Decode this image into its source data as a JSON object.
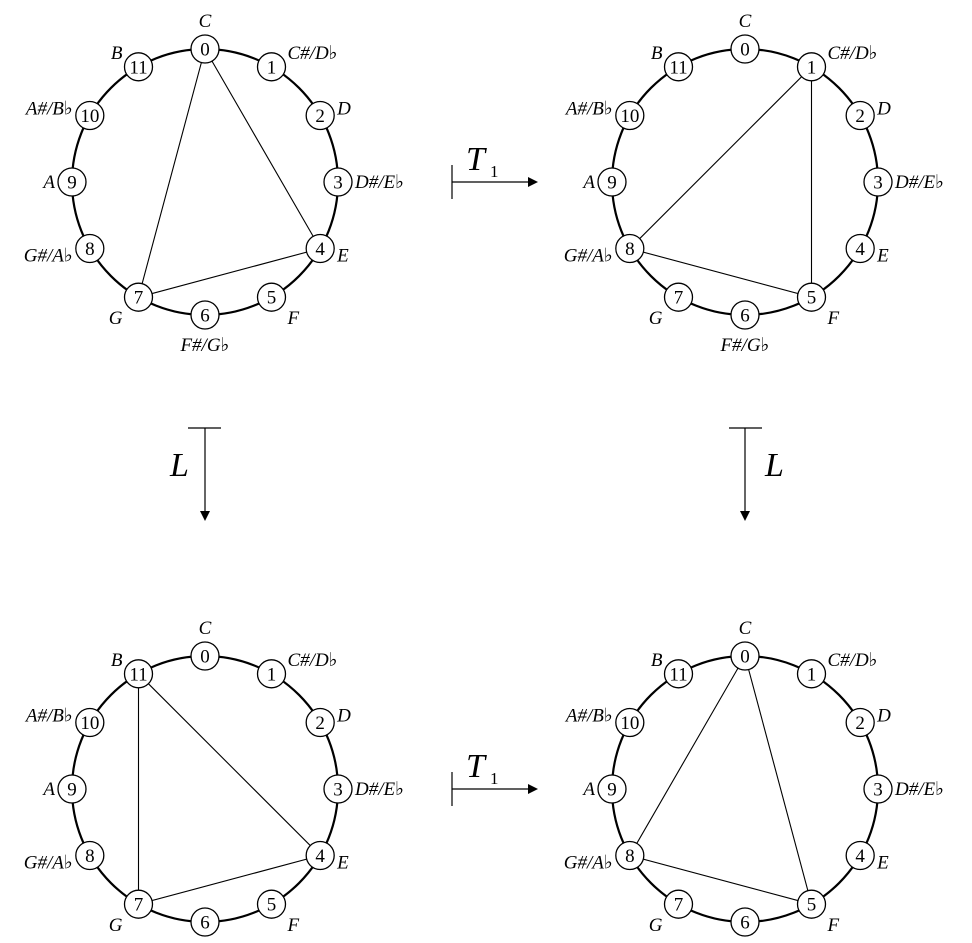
{
  "pitch_classes": [
    {
      "num": "0",
      "label": "C"
    },
    {
      "num": "1",
      "label": "C#/D♭"
    },
    {
      "num": "2",
      "label": "D"
    },
    {
      "num": "3",
      "label": "D#/E♭"
    },
    {
      "num": "4",
      "label": "E"
    },
    {
      "num": "5",
      "label": "F"
    },
    {
      "num": "6",
      "label": "F#/G♭"
    },
    {
      "num": "7",
      "label": "G"
    },
    {
      "num": "8",
      "label": "G#/A♭"
    },
    {
      "num": "9",
      "label": "A"
    },
    {
      "num": "10",
      "label": "A#/B♭"
    },
    {
      "num": "11",
      "label": "B"
    }
  ],
  "clocks": [
    {
      "id": "top-left",
      "triad": [
        0,
        4,
        7
      ]
    },
    {
      "id": "top-right",
      "triad": [
        1,
        5,
        8
      ]
    },
    {
      "id": "bottom-left",
      "triad": [
        11,
        4,
        7
      ]
    },
    {
      "id": "bottom-right",
      "triad": [
        0,
        5,
        8
      ]
    }
  ],
  "maps": {
    "top": {
      "op": "T",
      "sub": "1"
    },
    "bottom": {
      "op": "T",
      "sub": "1"
    },
    "left": {
      "op": "L"
    },
    "right": {
      "op": "L"
    }
  }
}
